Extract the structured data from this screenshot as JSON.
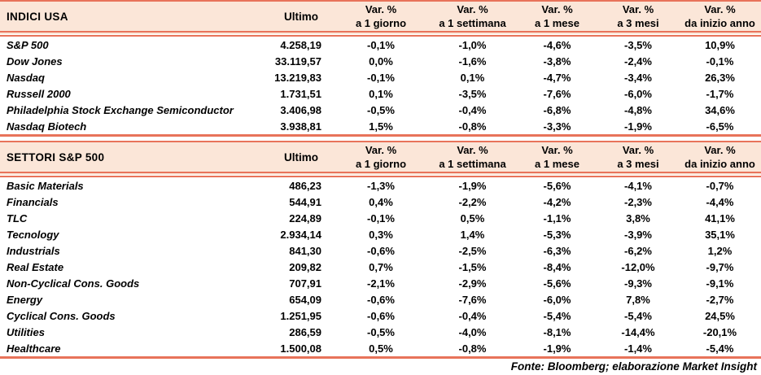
{
  "chart_data": [
    {
      "type": "table",
      "title": "INDICI USA",
      "columns": {
        "ultimo": "Ultimo",
        "var": "Var. %",
        "periods": [
          "a 1 giorno",
          "a 1 settimana",
          "a 1 mese",
          "a 3 mesi",
          "da inizio anno"
        ]
      },
      "rows": [
        {
          "name": "S&P 500",
          "ultimo": "4.258,19",
          "vars": [
            "-0,1%",
            "-1,0%",
            "-4,6%",
            "-3,5%",
            "10,9%"
          ]
        },
        {
          "name": "Dow Jones",
          "ultimo": "33.119,57",
          "vars": [
            "0,0%",
            "-1,6%",
            "-3,8%",
            "-2,4%",
            "-0,1%"
          ]
        },
        {
          "name": "Nasdaq",
          "ultimo": "13.219,83",
          "vars": [
            "-0,1%",
            "0,1%",
            "-4,7%",
            "-3,4%",
            "26,3%"
          ]
        },
        {
          "name": "Russell 2000",
          "ultimo": "1.731,51",
          "vars": [
            "0,1%",
            "-3,5%",
            "-7,6%",
            "-6,0%",
            "-1,7%"
          ]
        },
        {
          "name": "Philadelphia Stock Exchange Semiconductor",
          "ultimo": "3.406,98",
          "vars": [
            "-0,5%",
            "-0,4%",
            "-6,8%",
            "-4,8%",
            "34,6%"
          ]
        },
        {
          "name": "Nasdaq Biotech",
          "ultimo": "3.938,81",
          "vars": [
            "1,5%",
            "-0,8%",
            "-3,3%",
            "-1,9%",
            "-6,5%"
          ]
        }
      ]
    },
    {
      "type": "table",
      "title": "SETTORI S&P 500",
      "columns": {
        "ultimo": "Ultimo",
        "var": "Var. %",
        "periods": [
          "a 1 giorno",
          "a 1 settimana",
          "a 1 mese",
          "a 3 mesi",
          "da inizio anno"
        ]
      },
      "rows": [
        {
          "name": "Basic Materials",
          "ultimo": "486,23",
          "vars": [
            "-1,3%",
            "-1,9%",
            "-5,6%",
            "-4,1%",
            "-0,7%"
          ]
        },
        {
          "name": "Financials",
          "ultimo": "544,91",
          "vars": [
            "0,4%",
            "-2,2%",
            "-4,2%",
            "-2,3%",
            "-4,4%"
          ]
        },
        {
          "name": "TLC",
          "ultimo": "224,89",
          "vars": [
            "-0,1%",
            "0,5%",
            "-1,1%",
            "3,8%",
            "41,1%"
          ]
        },
        {
          "name": "Tecnology",
          "ultimo": "2.934,14",
          "vars": [
            "0,3%",
            "1,4%",
            "-5,3%",
            "-3,9%",
            "35,1%"
          ]
        },
        {
          "name": "Industrials",
          "ultimo": "841,30",
          "vars": [
            "-0,6%",
            "-2,5%",
            "-6,3%",
            "-6,2%",
            "1,2%"
          ]
        },
        {
          "name": "Real Estate",
          "ultimo": "209,82",
          "vars": [
            "0,7%",
            "-1,5%",
            "-8,4%",
            "-12,0%",
            "-9,7%"
          ]
        },
        {
          "name": "Non-Cyclical Cons. Goods",
          "ultimo": "707,91",
          "vars": [
            "-2,1%",
            "-2,9%",
            "-5,6%",
            "-9,3%",
            "-9,1%"
          ]
        },
        {
          "name": "Energy",
          "ultimo": "654,09",
          "vars": [
            "-0,6%",
            "-7,6%",
            "-6,0%",
            "7,8%",
            "-2,7%"
          ]
        },
        {
          "name": "Cyclical Cons. Goods",
          "ultimo": "1.251,95",
          "vars": [
            "-0,6%",
            "-0,4%",
            "-5,4%",
            "-5,4%",
            "24,5%"
          ]
        },
        {
          "name": "Utilities",
          "ultimo": "286,59",
          "vars": [
            "-0,5%",
            "-4,0%",
            "-8,1%",
            "-14,4%",
            "-20,1%"
          ]
        },
        {
          "name": "Healthcare",
          "ultimo": "1.500,08",
          "vars": [
            "0,5%",
            "-0,8%",
            "-1,9%",
            "-1,4%",
            "-5,4%"
          ]
        }
      ]
    }
  ],
  "footer": {
    "source_note": "Fonte: Bloomberg; elaborazione Market Insight"
  },
  "colors": {
    "header_bg": "#fbe6d8",
    "border": "#e8735a",
    "text": "#000000"
  }
}
